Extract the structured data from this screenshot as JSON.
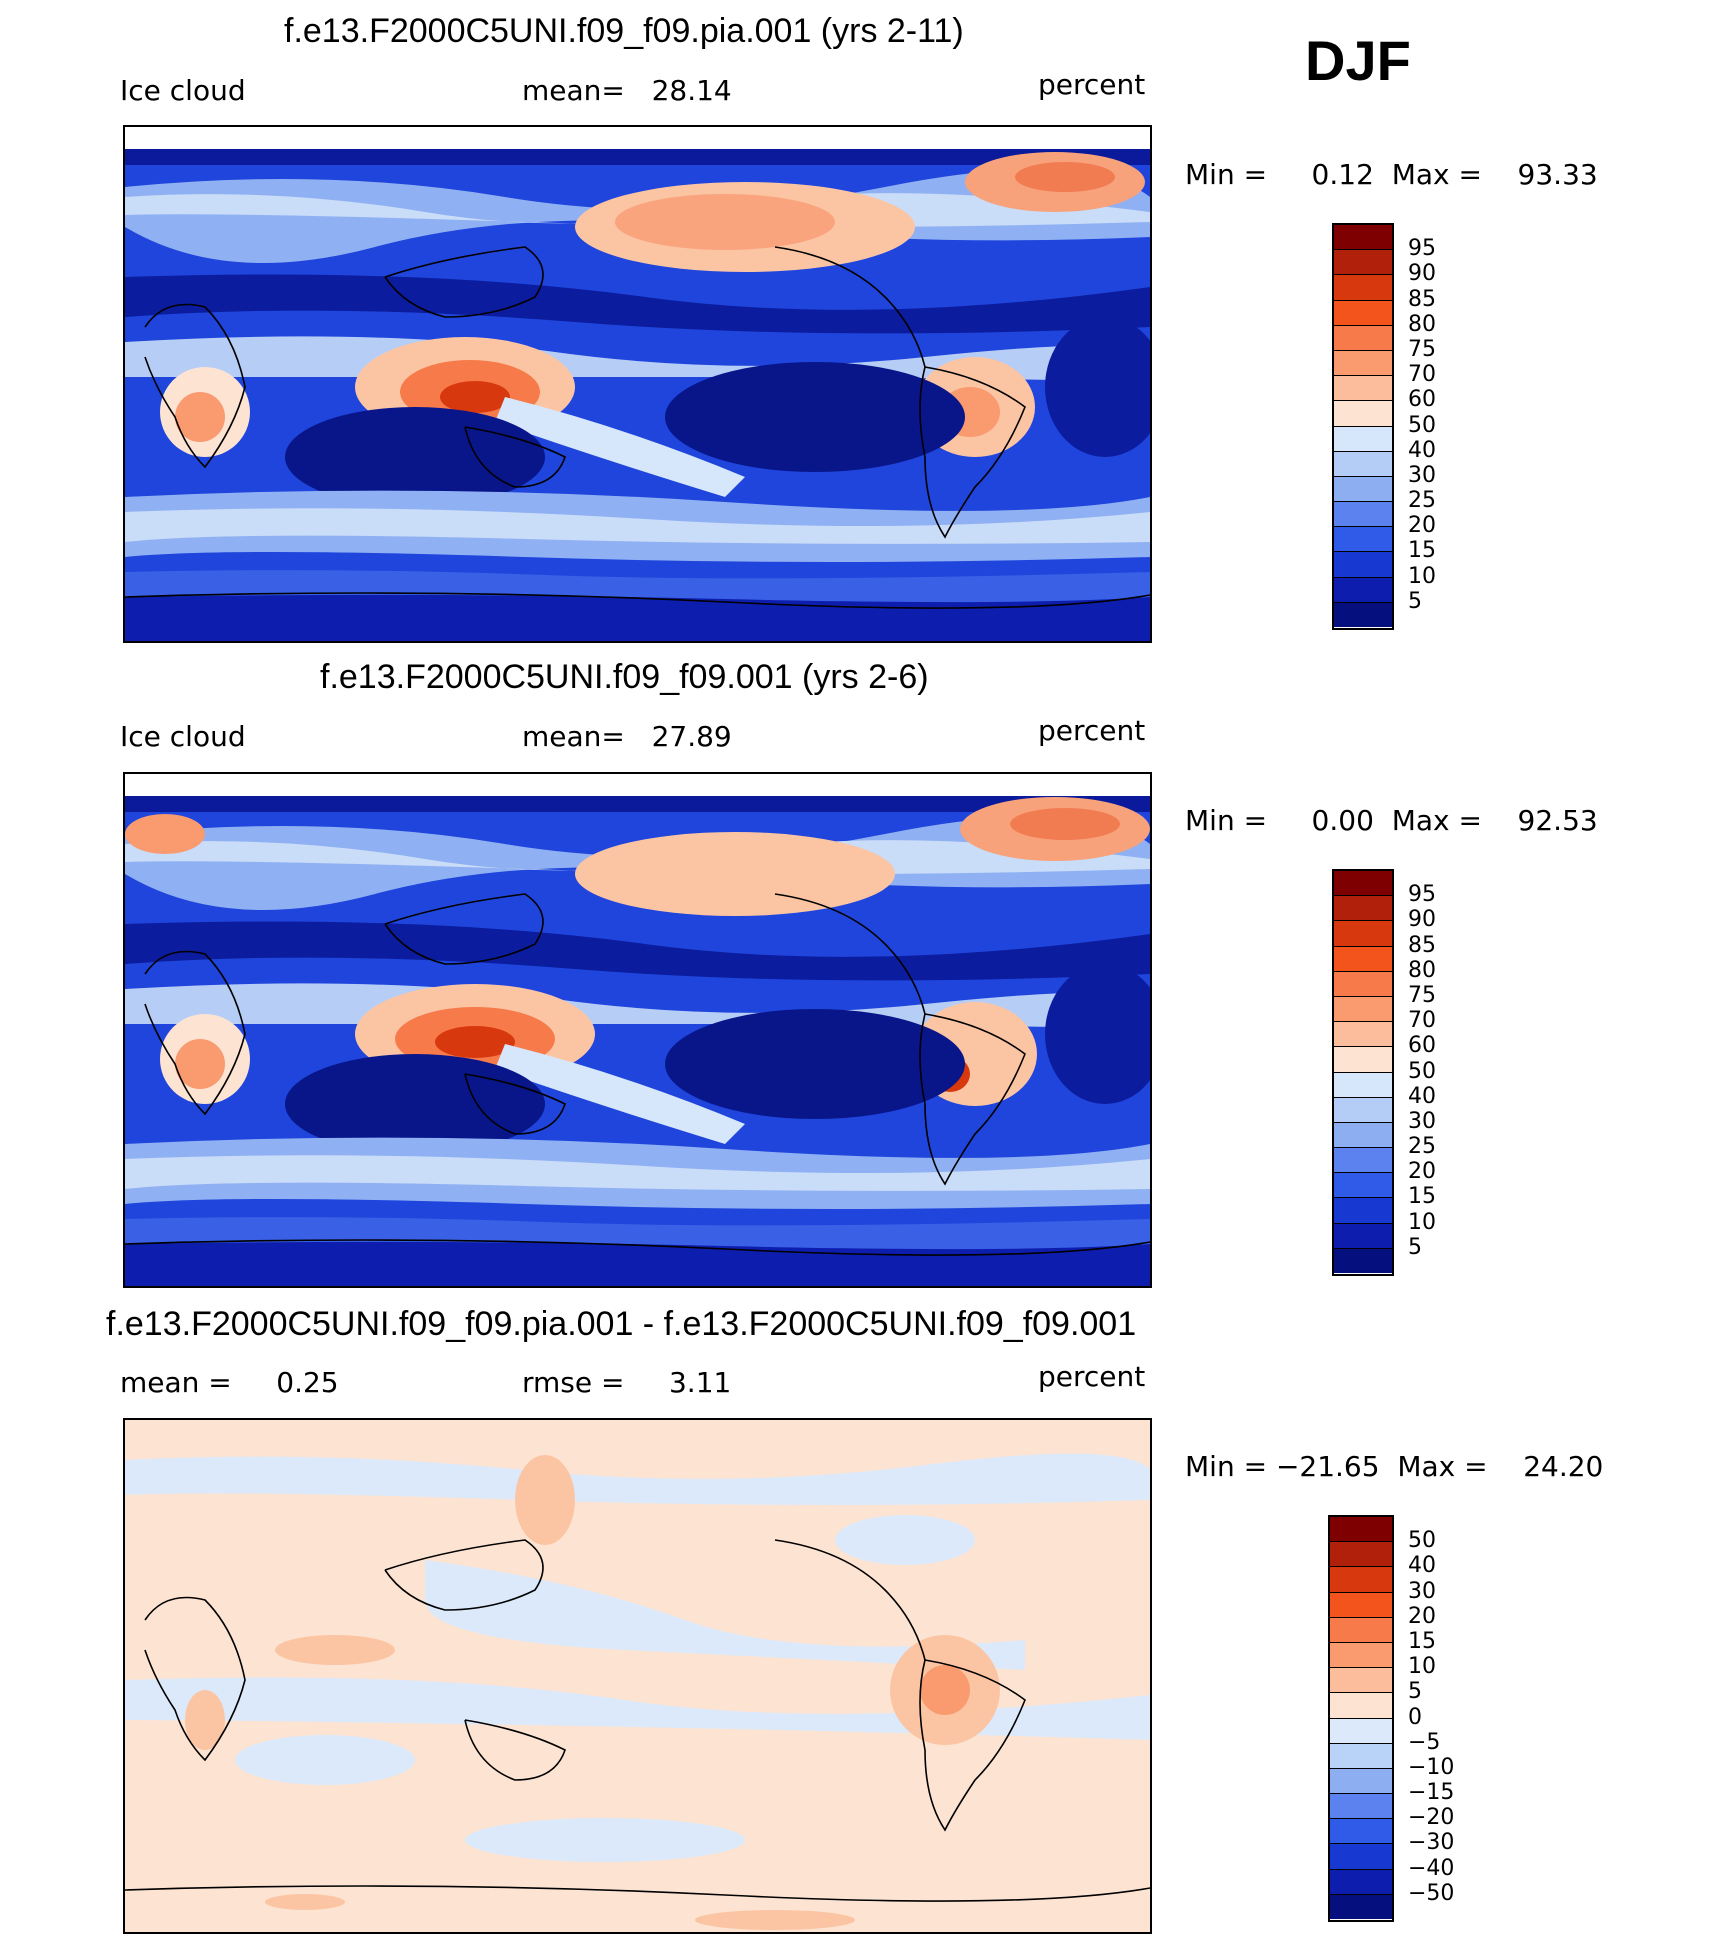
{
  "season": "DJF",
  "panels": [
    {
      "title": "f.e13.F2000C5UNI.f09_f09.pia.001 (yrs 2-11)",
      "left_label": "Ice cloud",
      "center_label": "mean=   28.14",
      "right_label": "percent",
      "minmax": "Min =     0.12  Max =    93.33",
      "variant": "abs"
    },
    {
      "title": "f.e13.F2000C5UNI.f09_f09.001 (yrs 2-6)",
      "left_label": "Ice cloud",
      "center_label": "mean=   27.89",
      "right_label": "percent",
      "minmax": "Min =     0.00  Max =    92.53",
      "variant": "abs"
    },
    {
      "title": "f.e13.F2000C5UNI.f09_f09.pia.001 - f.e13.F2000C5UNI.f09_f09.001",
      "left_label": "mean =     0.25",
      "center_label": "rmse =     3.11",
      "right_label": "percent",
      "minmax": "Min = −21.65  Max =    24.20",
      "variant": "diff"
    }
  ],
  "colorbars": {
    "abs": {
      "labels": [
        "95",
        "90",
        "85",
        "80",
        "75",
        "70",
        "60",
        "50",
        "40",
        "30",
        "25",
        "20",
        "15",
        "10",
        "5"
      ],
      "colors": [
        "#7f0000",
        "#b0200a",
        "#d8380e",
        "#f2541b",
        "#f77a4a",
        "#f99a6f",
        "#fbbd9c",
        "#fde4d2",
        "#d6e7fb",
        "#b4cdf6",
        "#8eaef2",
        "#5b82ee",
        "#2f5be8",
        "#1838d2",
        "#0d1eae",
        "#05107e"
      ]
    },
    "diff": {
      "labels": [
        "50",
        "40",
        "30",
        "20",
        "15",
        "10",
        "5",
        "0",
        "−5",
        "−10",
        "−15",
        "−20",
        "−30",
        "−40",
        "−50"
      ],
      "colors": [
        "#7f0000",
        "#b0200a",
        "#d8380e",
        "#f2541b",
        "#f77a4a",
        "#f99a6f",
        "#fbbd9c",
        "#fde4d2",
        "#dce9fa",
        "#b9d2f8",
        "#8eaef2",
        "#5b82ee",
        "#2f5be8",
        "#1838d2",
        "#0d1eae",
        "#05107e"
      ]
    }
  }
}
